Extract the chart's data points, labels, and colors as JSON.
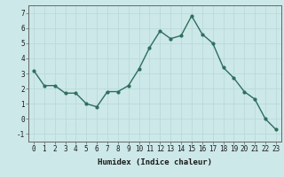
{
  "x": [
    0,
    1,
    2,
    3,
    4,
    5,
    6,
    7,
    8,
    9,
    10,
    11,
    12,
    13,
    14,
    15,
    16,
    17,
    18,
    19,
    20,
    21,
    22,
    23
  ],
  "y": [
    3.2,
    2.2,
    2.2,
    1.7,
    1.7,
    1.0,
    0.8,
    1.8,
    1.8,
    2.2,
    3.3,
    4.7,
    5.8,
    5.3,
    5.5,
    6.8,
    5.6,
    5.0,
    3.4,
    2.7,
    1.8,
    1.3,
    0.0,
    -0.7
  ],
  "line_color": "#2e6e5e",
  "marker": "o",
  "marker_size": 2.0,
  "line_width": 1.0,
  "bg_color": "#cce8e8",
  "grid_color": "#b8d8d8",
  "xlabel": "Humidex (Indice chaleur)",
  "ylim": [
    -1.5,
    7.5
  ],
  "xlim": [
    -0.5,
    23.5
  ],
  "yticks": [
    -1,
    0,
    1,
    2,
    3,
    4,
    5,
    6,
    7
  ],
  "xtick_labels": [
    "0",
    "1",
    "2",
    "3",
    "4",
    "5",
    "6",
    "7",
    "8",
    "9",
    "10",
    "11",
    "12",
    "13",
    "14",
    "15",
    "16",
    "17",
    "18",
    "19",
    "20",
    "21",
    "22",
    "23"
  ],
  "xlabel_fontsize": 6.5,
  "tick_fontsize": 5.5
}
